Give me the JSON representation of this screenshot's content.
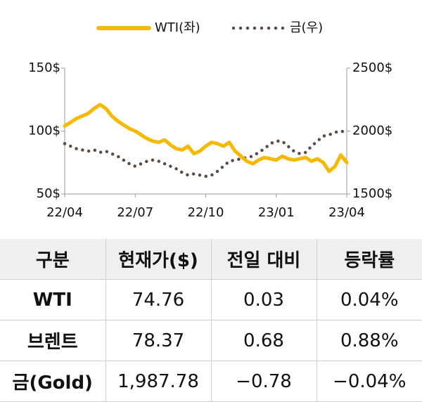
{
  "chart_data": {
    "type": "line",
    "x": [
      0,
      0.25,
      0.5,
      0.75,
      1,
      1.25,
      1.5,
      1.75,
      2,
      2.25,
      2.5,
      2.75,
      3,
      3.25,
      3.5,
      3.75,
      4,
      4.25,
      4.5,
      4.75,
      5,
      5.25,
      5.5,
      5.75,
      6,
      6.25,
      6.5,
      6.75,
      7,
      7.25,
      7.5,
      7.75,
      8,
      8.25,
      8.5,
      8.75,
      9,
      9.25,
      9.5,
      9.75,
      10,
      10.25,
      10.5,
      10.75,
      11,
      11.25,
      11.5,
      11.75,
      12
    ],
    "xlim": [
      0,
      12
    ],
    "xticks": [
      {
        "value": 0,
        "label": "22/04"
      },
      {
        "value": 3,
        "label": "22/07"
      },
      {
        "value": 6,
        "label": "22/10"
      },
      {
        "value": 9,
        "label": "23/01"
      },
      {
        "value": 12,
        "label": "23/04"
      }
    ],
    "ylim": [
      50,
      150
    ],
    "yticks": [
      {
        "value": 50,
        "label": "50$"
      },
      {
        "value": 100,
        "label": "100$"
      },
      {
        "value": 150,
        "label": "150$"
      }
    ],
    "y2lim": [
      1500,
      2500
    ],
    "y2ticks": [
      {
        "value": 1500,
        "label": "1500$"
      },
      {
        "value": 2000,
        "label": "2000$"
      },
      {
        "value": 2500,
        "label": "2500$"
      }
    ],
    "series": [
      {
        "name": "WTI(좌)",
        "color": "#f7b800",
        "style": "solid",
        "values": [
          104,
          107,
          110,
          112,
          114,
          118,
          121,
          118,
          112,
          108,
          105,
          102,
          100,
          97,
          94,
          92,
          91,
          93,
          89,
          86,
          85,
          88,
          82,
          84,
          88,
          91,
          90,
          88,
          91,
          84,
          80,
          76,
          74,
          77,
          79,
          78,
          77,
          80,
          78,
          77,
          78,
          79,
          76,
          78,
          75,
          68,
          72,
          81,
          75
        ]
      },
      {
        "name": "금(우)",
        "color": "#5a4b43",
        "style": "dotted",
        "axis": "y2",
        "values": [
          1900,
          1880,
          1860,
          1850,
          1840,
          1850,
          1830,
          1840,
          1820,
          1800,
          1770,
          1740,
          1720,
          1740,
          1760,
          1770,
          1760,
          1740,
          1720,
          1700,
          1670,
          1650,
          1660,
          1650,
          1640,
          1650,
          1680,
          1720,
          1760,
          1770,
          1780,
          1790,
          1800,
          1830,
          1860,
          1900,
          1920,
          1920,
          1880,
          1840,
          1820,
          1830,
          1880,
          1920,
          1960,
          1970,
          1990,
          2000,
          1990
        ]
      }
    ]
  },
  "table": {
    "header": [
      "구분",
      "현재가($)",
      "전일 대비",
      "등락률"
    ],
    "rows": [
      [
        "WTI",
        "74.76",
        "0.03",
        "0.04%"
      ],
      [
        "브렌트",
        "78.37",
        "0.68",
        "0.88%"
      ],
      [
        "금(Gold)",
        "1,987.78",
        "−0.78",
        "−0.04%"
      ]
    ]
  }
}
